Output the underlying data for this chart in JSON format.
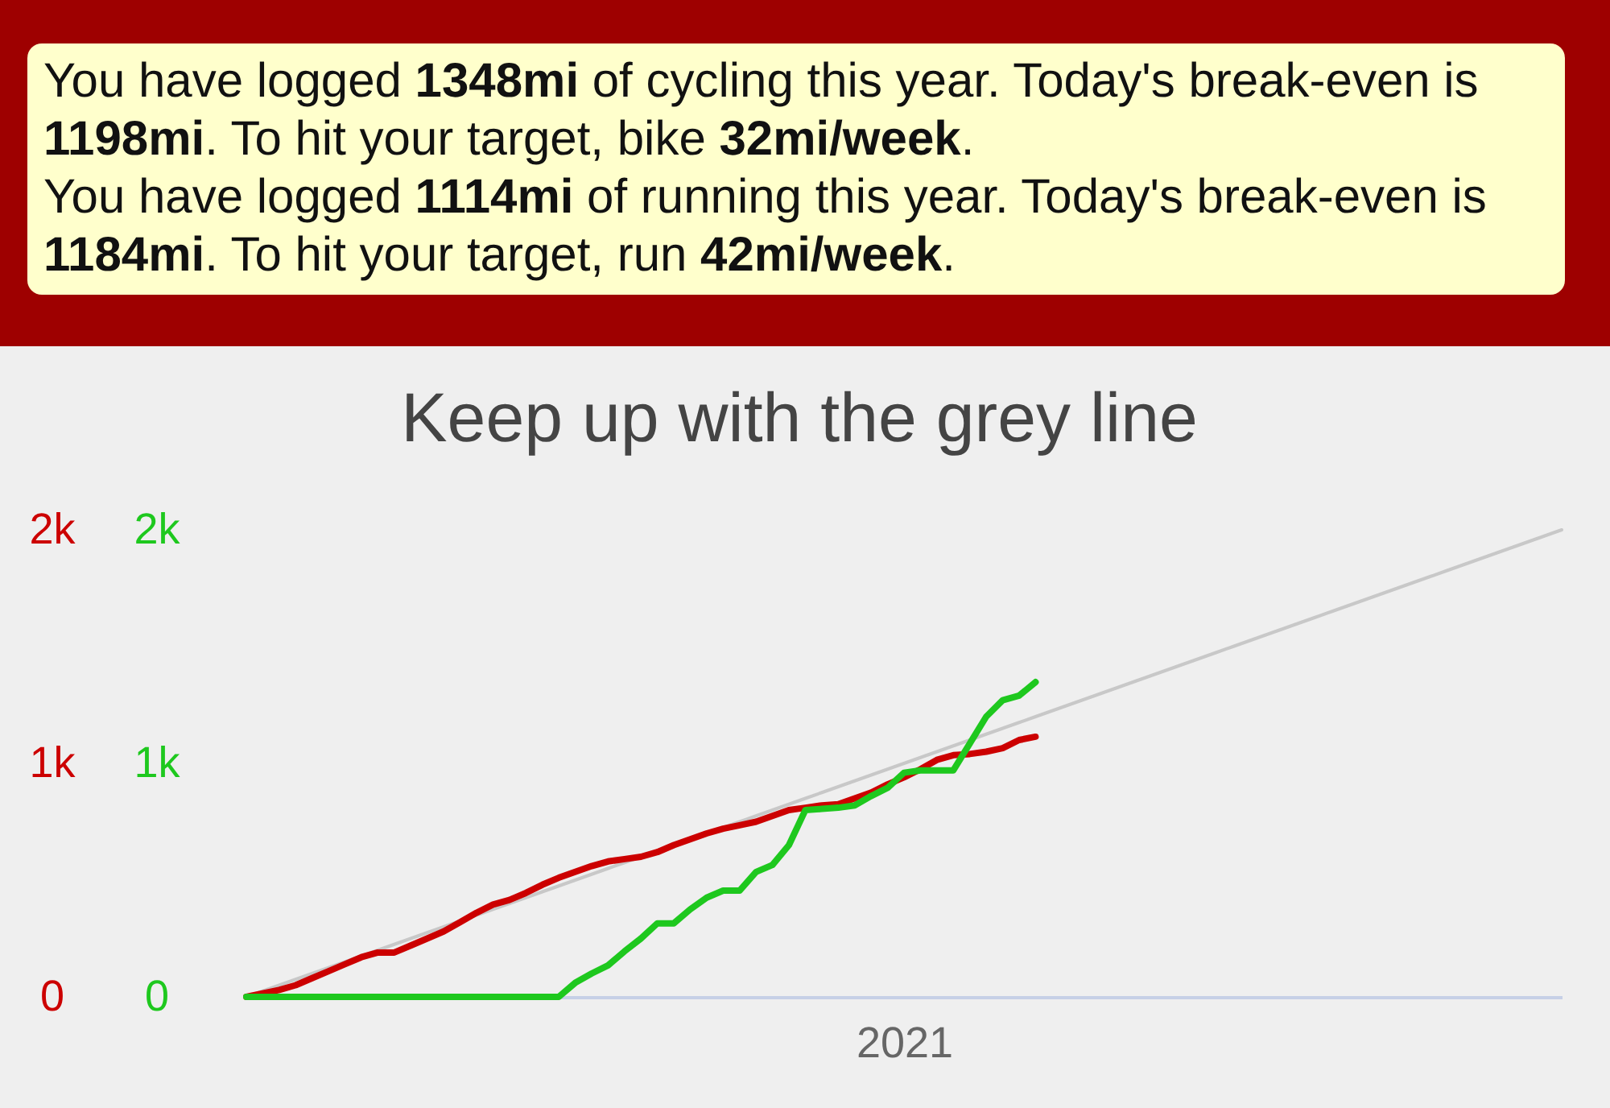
{
  "chart_data": {
    "type": "line",
    "title": "Keep up with the grey line",
    "annotations": [
      "You have logged 1348mi of cycling this year. Today's break-even is 1198mi. To hit your target, bike 32mi/week.",
      "You have logged 1114mi of running this year. Today's break-even is 1184mi. To hit your target, run 42mi/week."
    ],
    "categories": [
      null,
      null,
      null,
      null,
      null,
      null,
      null,
      null,
      null,
      null,
      null,
      null,
      null,
      null,
      null,
      null,
      null,
      null,
      null,
      null,
      null,
      null,
      null,
      null,
      null,
      null,
      null,
      null,
      null,
      null,
      null,
      null,
      null,
      null,
      null,
      null,
      null,
      null,
      null,
      null,
      "2021",
      null,
      null,
      null,
      null,
      null,
      null,
      null,
      null,
      null,
      null,
      null,
      null,
      null,
      null,
      null,
      null,
      null,
      null,
      null,
      null,
      null,
      null,
      null,
      null,
      null,
      null,
      null,
      null,
      null,
      null,
      null,
      null,
      null,
      null,
      null,
      null,
      null,
      null,
      null,
      null
    ],
    "ylim": [
      0,
      2000
    ],
    "yticks": [
      {
        "value": 0,
        "label": "0"
      },
      {
        "value": 1000,
        "label": "1k"
      },
      {
        "value": 2000,
        "label": "2k"
      }
    ],
    "y2lim": [
      0,
      2000
    ],
    "y2ticks": [
      {
        "value": 0,
        "label": "0"
      },
      {
        "value": 1000,
        "label": "1k"
      },
      {
        "value": 2000,
        "label": "2k"
      }
    ],
    "series": [
      {
        "color": "#c8c8c8",
        "values": [
          0,
          25,
          50,
          75,
          100,
          125,
          150,
          175,
          200,
          225,
          250,
          275,
          300,
          325,
          350,
          375,
          400,
          425,
          450,
          475,
          500,
          525,
          550,
          575,
          600,
          625,
          650,
          675,
          700,
          725,
          750,
          775,
          800,
          825,
          850,
          875,
          900,
          925,
          950,
          975,
          1000,
          1025,
          1050,
          1075,
          1100,
          1125,
          1150,
          1175,
          1200,
          1225,
          1250,
          1275,
          1300,
          1325,
          1350,
          1375,
          1400,
          1425,
          1450,
          1475,
          1500,
          1525,
          1550,
          1575,
          1600,
          1625,
          1650,
          1675,
          1700,
          1725,
          1750,
          1775,
          1800,
          1825,
          1850,
          1875,
          1900,
          1925,
          1950,
          1975,
          2000
        ]
      },
      {
        "color": "#cc0000",
        "values": [
          0,
          15,
          30,
          50,
          80,
          110,
          140,
          170,
          190,
          190,
          220,
          250,
          280,
          320,
          360,
          395,
          415,
          445,
          480,
          510,
          535,
          560,
          580,
          590,
          600,
          620,
          650,
          675,
          700,
          720,
          735,
          750,
          775,
          800,
          810,
          820,
          825,
          850,
          875,
          910,
          940,
          975,
          1015,
          1035,
          1040,
          1050,
          1065,
          1100,
          1114,
          null,
          null,
          null,
          null,
          null,
          null,
          null,
          null,
          null,
          null,
          null,
          null,
          null,
          null,
          null,
          null,
          null,
          null,
          null,
          null,
          null,
          null,
          null,
          null,
          null,
          null,
          null,
          null,
          null,
          null,
          null,
          null
        ]
      },
      {
        "color": "#1ec81e",
        "axis": "y2",
        "values": [
          0,
          0,
          0,
          0,
          0,
          0,
          0,
          0,
          0,
          0,
          0,
          0,
          0,
          0,
          0,
          0,
          0,
          0,
          0,
          0,
          60,
          100,
          135,
          195,
          250,
          315,
          315,
          375,
          425,
          455,
          455,
          535,
          565,
          650,
          800,
          805,
          810,
          820,
          860,
          895,
          960,
          970,
          970,
          970,
          1085,
          1200,
          1270,
          1290,
          1348,
          null,
          null,
          null,
          null,
          null,
          null,
          null,
          null,
          null,
          null,
          null,
          null,
          null,
          null,
          null,
          null,
          null,
          null,
          null,
          null,
          null,
          null,
          null,
          null,
          null,
          null,
          null,
          null,
          null,
          null,
          null,
          null
        ]
      }
    ]
  }
}
